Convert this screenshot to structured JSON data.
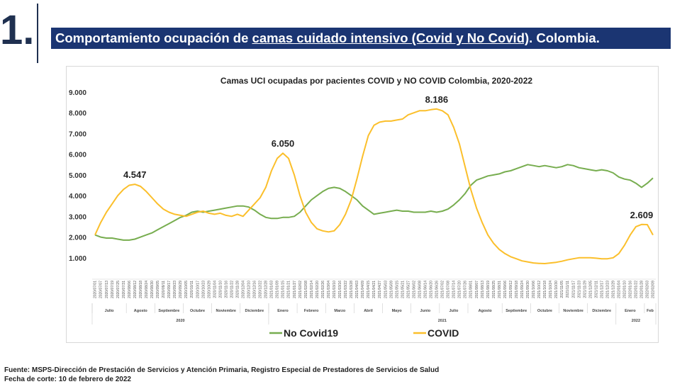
{
  "header": {
    "section_number": "1.",
    "title_pre": "Comportamiento ocupación de ",
    "title_underlined": "camas cuidado intensivo (Covid y No Covid)",
    "title_post": ". Colombia."
  },
  "footer": {
    "source": "Fuente: MSPS-Dirección de Prestación de Servicios y Atención Primaria, Registro Especial de Prestadores de Servicios de Salud",
    "cutoff": "Fecha de corte: 10 de febrero de 2022"
  },
  "chart_data": {
    "type": "line",
    "title": "Camas UCI ocupadas por pacientes COVID y NO COVID Colombia, 2020-2022",
    "ylim": [
      0,
      9000
    ],
    "yticks": [
      1000,
      2000,
      3000,
      4000,
      5000,
      6000,
      7000,
      8000,
      9000
    ],
    "ytick_labels": [
      "1.000",
      "2.000",
      "3.000",
      "4.000",
      "5.000",
      "6.000",
      "7.000",
      "8.000",
      "9.000"
    ],
    "grid": false,
    "legend_position": "bottom",
    "x": [
      "2020/07/01",
      "2020/07/07",
      "2020/07/13",
      "2020/07/19",
      "2020/07/25",
      "2020/07/31",
      "2020/08/06",
      "2020/08/12",
      "2020/08/18",
      "2020/08/24",
      "2020/08/30",
      "2020/09/05",
      "2020/09/11",
      "2020/09/17",
      "2020/09/23",
      "2020/09/29",
      "2020/10/05",
      "2020/10/11",
      "2020/10/17",
      "2020/10/23",
      "2020/10/29",
      "2020/11/04",
      "2020/11/10",
      "2020/11/16",
      "2020/11/22",
      "2020/11/28",
      "2020/12/04",
      "2020/12/10",
      "2020/12/16",
      "2020/12/22",
      "2020/12/28",
      "2021/01/03",
      "2021/01/09",
      "2021/01/15",
      "2021/01/21",
      "2021/01/27",
      "2021/02/02",
      "2021/02/08",
      "2021/02/14",
      "2021/02/20",
      "2021/02/26",
      "2021/03/04",
      "2021/03/10",
      "2021/03/16",
      "2021/03/22",
      "2021/03/28",
      "2021/04/03",
      "2021/04/09",
      "2021/04/15",
      "2021/04/21",
      "2021/04/27",
      "2021/05/03",
      "2021/05/09",
      "2021/05/15",
      "2021/05/21",
      "2021/05/27",
      "2021/06/02",
      "2021/06/08",
      "2021/06/14",
      "2021/06/20",
      "2021/06/26",
      "2021/07/02",
      "2021/07/08",
      "2021/07/14",
      "2021/07/20",
      "2021/07/26",
      "2021/08/01",
      "2021/08/07",
      "2021/08/13",
      "2021/08/19",
      "2021/08/25",
      "2021/08/31",
      "2021/09/06",
      "2021/09/12",
      "2021/09/18",
      "2021/09/24",
      "2021/09/30",
      "2021/10/06",
      "2021/10/12",
      "2021/10/18",
      "2021/10/24",
      "2021/10/30",
      "2021/11/05",
      "2021/11/11",
      "2021/11/17",
      "2021/11/23",
      "2021/11/29",
      "2021/12/05",
      "2021/12/11",
      "2021/12/17",
      "2021/12/23",
      "2021/12/29",
      "2022/01/04",
      "2022/01/10",
      "2022/01/16",
      "2022/01/22",
      "2022/01/28",
      "2022/02/03",
      "2022/02/09"
    ],
    "month_labels": [
      "Julio",
      "Agosto",
      "Septiembre",
      "Octubre",
      "Noviembre",
      "Diciembre",
      "Enero",
      "Febrero",
      "Marzo",
      "Abril",
      "Mayo",
      "Junio",
      "Julio",
      "Agosto",
      "Septiembre",
      "Octubre",
      "Noviembre",
      "Diciembre",
      "Enero",
      "Feb"
    ],
    "year_labels": [
      "2020",
      "2021",
      "2022"
    ],
    "series": [
      {
        "name": "No Covid19",
        "color": "#77ad4f",
        "values": [
          2100,
          2000,
          1950,
          1950,
          1900,
          1850,
          1850,
          1900,
          2000,
          2100,
          2200,
          2350,
          2500,
          2650,
          2800,
          2950,
          3050,
          3200,
          3250,
          3200,
          3250,
          3300,
          3350,
          3400,
          3450,
          3500,
          3500,
          3450,
          3300,
          3100,
          2950,
          2900,
          2900,
          2950,
          2950,
          3000,
          3200,
          3500,
          3800,
          4000,
          4200,
          4350,
          4400,
          4350,
          4200,
          4000,
          3800,
          3500,
          3300,
          3100,
          3150,
          3200,
          3250,
          3300,
          3250,
          3250,
          3200,
          3200,
          3200,
          3250,
          3200,
          3250,
          3350,
          3550,
          3800,
          4100,
          4500,
          4750,
          4850,
          4950,
          5000,
          5050,
          5150,
          5200,
          5300,
          5400,
          5500,
          5450,
          5400,
          5450,
          5400,
          5350,
          5400,
          5500,
          5450,
          5350,
          5300,
          5250,
          5200,
          5250,
          5200,
          5100,
          4900,
          4800,
          4750,
          4600,
          4400,
          4600,
          4850
        ]
      },
      {
        "name": "COVID",
        "color": "#fbbf2b",
        "values": [
          2100,
          2700,
          3200,
          3600,
          4000,
          4300,
          4500,
          4547,
          4450,
          4200,
          3900,
          3600,
          3350,
          3200,
          3100,
          3050,
          3000,
          3100,
          3200,
          3250,
          3150,
          3100,
          3150,
          3050,
          3000,
          3100,
          3000,
          3300,
          3600,
          3900,
          4400,
          5200,
          5800,
          6050,
          5800,
          5000,
          4000,
          3200,
          2700,
          2400,
          2300,
          2250,
          2300,
          2600,
          3100,
          3800,
          4800,
          5900,
          6900,
          7400,
          7550,
          7600,
          7600,
          7650,
          7700,
          7900,
          8000,
          8100,
          8100,
          8150,
          8186,
          8100,
          7900,
          7300,
          6500,
          5400,
          4300,
          3400,
          2700,
          2100,
          1700,
          1400,
          1200,
          1050,
          950,
          850,
          800,
          750,
          730,
          720,
          750,
          780,
          830,
          900,
          950,
          1000,
          1000,
          1000,
          980,
          950,
          950,
          1000,
          1200,
          1600,
          2100,
          2500,
          2609,
          2600,
          2100
        ]
      }
    ],
    "annotations": [
      {
        "series": "COVID",
        "x": "2020/08/12",
        "label": "4.547"
      },
      {
        "series": "COVID",
        "x": "2021/01/15",
        "label": "6.050"
      },
      {
        "series": "COVID",
        "x": "2021/06/26",
        "label": "8.186"
      },
      {
        "series": "COVID",
        "x": "2022/01/28",
        "label": "2.609"
      }
    ]
  }
}
